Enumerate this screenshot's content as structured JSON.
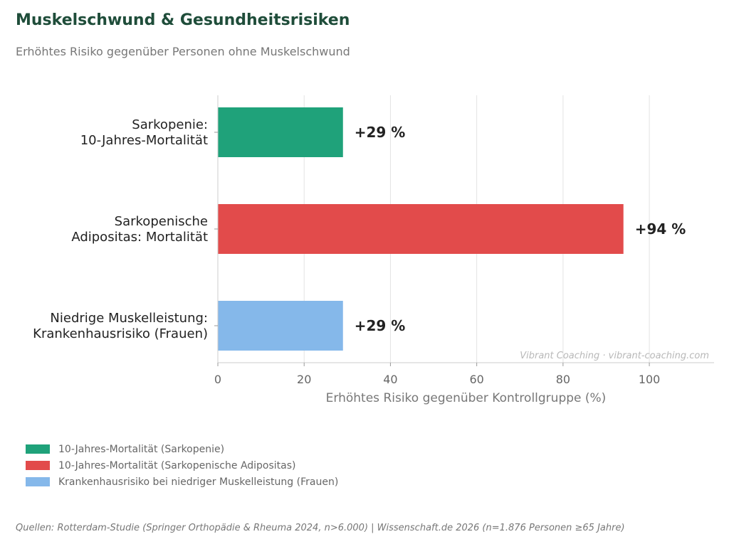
{
  "header": {
    "title": "Muskelschwund & Gesundheitsrisiken",
    "subtitle": "Erhöhtes Risiko gegenüber Personen ohne Muskelschwund"
  },
  "chart_data": {
    "type": "bar",
    "orientation": "horizontal",
    "categories": [
      [
        "Sarkopenie:",
        "10-Jahres-Mortalität"
      ],
      [
        "Sarkopenische",
        "Adipositas: Mortalität"
      ],
      [
        "Niedrige Muskelleistung:",
        "Krankenhausrisiko (Frauen)"
      ]
    ],
    "values": [
      29,
      94,
      29
    ],
    "value_labels": [
      "+29 %",
      "+94 %",
      "+29 %"
    ],
    "colors": [
      "#1fa27a",
      "#e24b4b",
      "#85b8ea"
    ],
    "xlabel": "Erhöhtes Risiko gegenüber Kontrollgruppe (%)",
    "xlim": [
      0,
      115
    ],
    "xticks": [
      0,
      20,
      40,
      60,
      80,
      100
    ],
    "grid": "vertical",
    "watermark": "Vibrant Coaching · vibrant-coaching.com"
  },
  "legend": {
    "placement": "bottom-left",
    "items": [
      {
        "label": "10-Jahres-Mortalität (Sarkopenie)",
        "color": "#1fa27a"
      },
      {
        "label": "10-Jahres-Mortalität (Sarkopenische Adipositas)",
        "color": "#e24b4b"
      },
      {
        "label": "Krankenhausrisiko bei niedriger Muskelleistung (Frauen)",
        "color": "#85b8ea"
      }
    ]
  },
  "footer": {
    "source": "Quellen: Rotterdam-Studie (Springer Orthopädie & Rheuma 2024, n>6.000) | Wissenschaft.de 2026 (n=1.876 Personen ≥65 Jahre)"
  }
}
